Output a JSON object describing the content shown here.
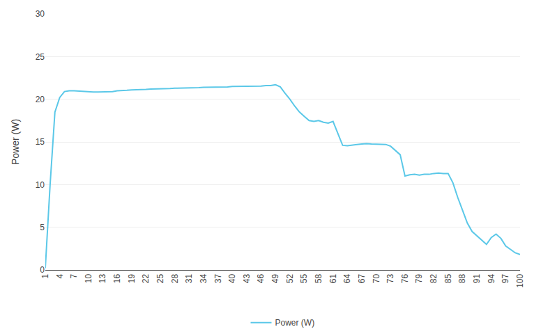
{
  "chart_data": {
    "type": "line",
    "ylabel": "Power (W)",
    "x": [
      1,
      2,
      3,
      4,
      5,
      6,
      7,
      8,
      9,
      10,
      11,
      12,
      13,
      14,
      15,
      16,
      17,
      18,
      19,
      20,
      21,
      22,
      23,
      24,
      25,
      26,
      27,
      28,
      29,
      30,
      31,
      32,
      33,
      34,
      35,
      36,
      37,
      38,
      39,
      40,
      41,
      42,
      43,
      44,
      45,
      46,
      47,
      48,
      49,
      50,
      51,
      52,
      53,
      54,
      55,
      56,
      57,
      58,
      59,
      60,
      61,
      62,
      63,
      64,
      65,
      66,
      67,
      68,
      69,
      70,
      71,
      72,
      73,
      74,
      75,
      76,
      77,
      78,
      79,
      80,
      81,
      82,
      83,
      84,
      85,
      86,
      87,
      88,
      89,
      90,
      91,
      92,
      93,
      94,
      95,
      96,
      97,
      98,
      99,
      100
    ],
    "series": [
      {
        "name": "Power (W)",
        "color": "#5BC8E8",
        "values": [
          0.2,
          10.0,
          18.5,
          20.2,
          20.9,
          21.0,
          21.0,
          20.95,
          20.9,
          20.85,
          20.85,
          20.85,
          20.85,
          20.9,
          20.9,
          21.0,
          21.0,
          21.05,
          21.1,
          21.1,
          21.15,
          21.15,
          21.2,
          21.2,
          21.25,
          21.25,
          21.25,
          21.3,
          21.3,
          21.3,
          21.3,
          21.35,
          21.35,
          21.4,
          21.4,
          21.4,
          21.45,
          21.45,
          21.45,
          21.5,
          21.5,
          21.5,
          21.5,
          21.55,
          21.55,
          21.55,
          21.6,
          21.6,
          21.7,
          21.45,
          20.7,
          20.0,
          19.2,
          18.5,
          18.0,
          17.5,
          17.4,
          17.5,
          17.3,
          17.2,
          17.4,
          16.0,
          14.6,
          14.55,
          14.65,
          14.7,
          14.75,
          14.8,
          14.75,
          14.75,
          14.75,
          14.7,
          14.5,
          14.0,
          13.5,
          11.0,
          11.15,
          11.2,
          11.1,
          11.2,
          11.2,
          11.3,
          11.35,
          11.3,
          11.3,
          10.2,
          8.5,
          7.0,
          5.5,
          4.5,
          4.0,
          3.5,
          3.0,
          3.8,
          4.2,
          3.7,
          2.8,
          2.4,
          2.0,
          1.8
        ]
      }
    ],
    "xlim": [
      1,
      100
    ],
    "xticks": [
      1,
      4,
      7,
      10,
      13,
      16,
      19,
      22,
      25,
      28,
      31,
      34,
      37,
      40,
      43,
      46,
      49,
      52,
      55,
      58,
      61,
      64,
      67,
      70,
      73,
      76,
      79,
      82,
      85,
      88,
      91,
      94,
      97,
      100
    ],
    "ylim": [
      0,
      30
    ],
    "yticks": [
      0,
      5,
      10,
      15,
      20,
      25,
      30
    ],
    "grid": "y",
    "legend": "bottom"
  }
}
